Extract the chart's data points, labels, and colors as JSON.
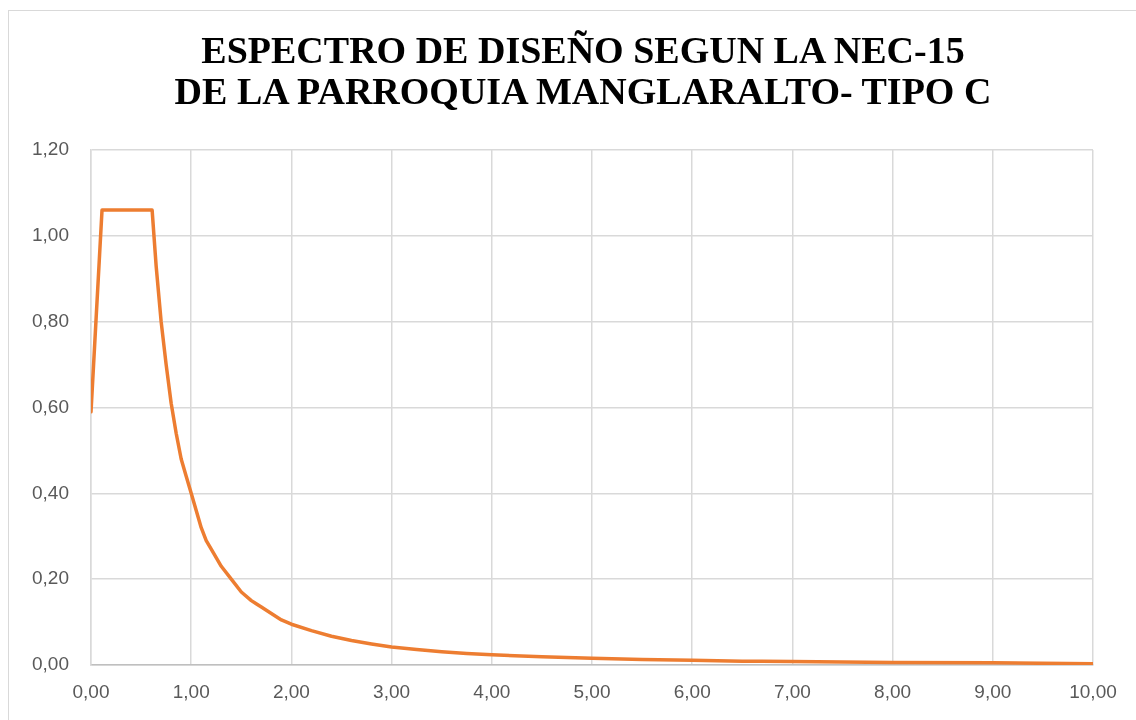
{
  "chart_data": {
    "type": "line",
    "title": "ESPECTRO DE DISEÑO SEGUN LA NEC-15\nDE LA PARROQUIA MANGLARALTO- TIPO C",
    "x": [
      0,
      0.11,
      0.61,
      0.65,
      0.7,
      0.75,
      0.8,
      0.85,
      0.9,
      0.95,
      1.0,
      1.05,
      1.1,
      1.15,
      1.2,
      1.3,
      1.4,
      1.5,
      1.6,
      1.7,
      1.8,
      1.9,
      2.0,
      2.2,
      2.4,
      2.6,
      2.8,
      3.0,
      3.25,
      3.5,
      3.75,
      4.0,
      4.5,
      5.0,
      5.5,
      6.0,
      6.5,
      7.0,
      8.0,
      9.0,
      10.0
    ],
    "values": [
      0.59,
      1.06,
      1.06,
      0.93,
      0.8,
      0.7,
      0.61,
      0.54,
      0.48,
      0.44,
      0.4,
      0.36,
      0.32,
      0.29,
      0.27,
      0.23,
      0.2,
      0.17,
      0.15,
      0.135,
      0.12,
      0.105,
      0.095,
      0.08,
      0.067,
      0.057,
      0.049,
      0.042,
      0.036,
      0.031,
      0.027,
      0.024,
      0.019,
      0.016,
      0.013,
      0.011,
      0.009,
      0.008,
      0.006,
      0.005,
      0.003
    ],
    "color": "#ed7d31",
    "xlim": [
      0,
      10
    ],
    "ylim": [
      0,
      1.2
    ],
    "xticks": [
      {
        "value": 0,
        "label": "0,00"
      },
      {
        "value": 1,
        "label": "1,00"
      },
      {
        "value": 2,
        "label": "2,00"
      },
      {
        "value": 3,
        "label": "3,00"
      },
      {
        "value": 4,
        "label": "4,00"
      },
      {
        "value": 5,
        "label": "5,00"
      },
      {
        "value": 6,
        "label": "6,00"
      },
      {
        "value": 7,
        "label": "7,00"
      },
      {
        "value": 8,
        "label": "8,00"
      },
      {
        "value": 9,
        "label": "9,00"
      },
      {
        "value": 10,
        "label": "10,00"
      }
    ],
    "yticks": [
      {
        "value": 0,
        "label": "0,00"
      },
      {
        "value": 0.2,
        "label": "0,20"
      },
      {
        "value": 0.4,
        "label": "0,40"
      },
      {
        "value": 0.6,
        "label": "0,60"
      },
      {
        "value": 0.8,
        "label": "0,80"
      },
      {
        "value": 1.0,
        "label": "1,00"
      },
      {
        "value": 1.2,
        "label": "1,20"
      }
    ],
    "grid": true
  }
}
